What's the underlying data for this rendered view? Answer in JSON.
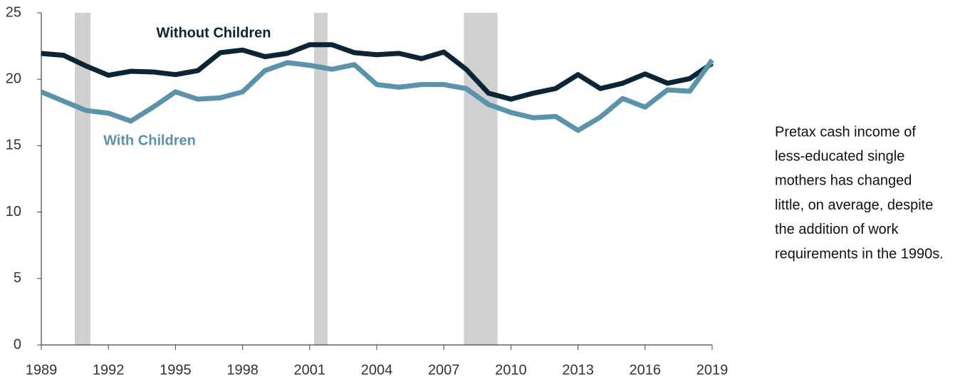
{
  "chart_data": {
    "type": "line",
    "x": [
      1989,
      1990,
      1991,
      1992,
      1993,
      1994,
      1995,
      1996,
      1997,
      1998,
      1999,
      2000,
      2001,
      2002,
      2003,
      2004,
      2005,
      2006,
      2007,
      2008,
      2009,
      2010,
      2011,
      2012,
      2013,
      2014,
      2015,
      2016,
      2017,
      2018,
      2019
    ],
    "series": [
      {
        "name": "Without Children",
        "color": "#0b2536",
        "values": [
          21.94,
          21.8,
          21.0,
          20.3,
          20.6,
          20.55,
          20.35,
          20.65,
          22.0,
          22.2,
          21.7,
          21.95,
          22.6,
          22.6,
          22.0,
          21.85,
          21.95,
          21.55,
          22.05,
          20.75,
          18.95,
          18.5,
          18.95,
          19.3,
          20.35,
          19.3,
          19.7,
          20.4,
          19.7,
          20.05,
          21.2
        ]
      },
      {
        "name": "With Children",
        "color": "#5a93ab",
        "values": [
          19.05,
          18.35,
          17.65,
          17.45,
          16.85,
          17.9,
          19.05,
          18.5,
          18.6,
          19.05,
          20.65,
          21.25,
          21.05,
          20.75,
          21.1,
          19.6,
          19.4,
          19.6,
          19.6,
          19.3,
          18.1,
          17.5,
          17.1,
          17.2,
          16.15,
          17.15,
          18.55,
          17.9,
          19.2,
          19.1,
          21.45
        ]
      }
    ],
    "recessions": [
      [
        1990.5,
        1991.2
      ],
      [
        2001.2,
        2001.8
      ],
      [
        2007.9,
        2009.4
      ]
    ],
    "recession_color": "#d0d0d0",
    "xlim": [
      1989,
      2019
    ],
    "xticks": [
      1989,
      1992,
      1995,
      1998,
      2001,
      2004,
      2007,
      2010,
      2013,
      2016,
      2019
    ],
    "ylim": [
      0,
      25
    ],
    "yticks": [
      0,
      5,
      10,
      15,
      20,
      25
    ],
    "grid": false,
    "annotation": [
      "Pretax cash income of",
      "less-educated single",
      "mothers has changed",
      "little, on average, despite",
      "the addition of work",
      "requirements in the 1990s."
    ]
  }
}
